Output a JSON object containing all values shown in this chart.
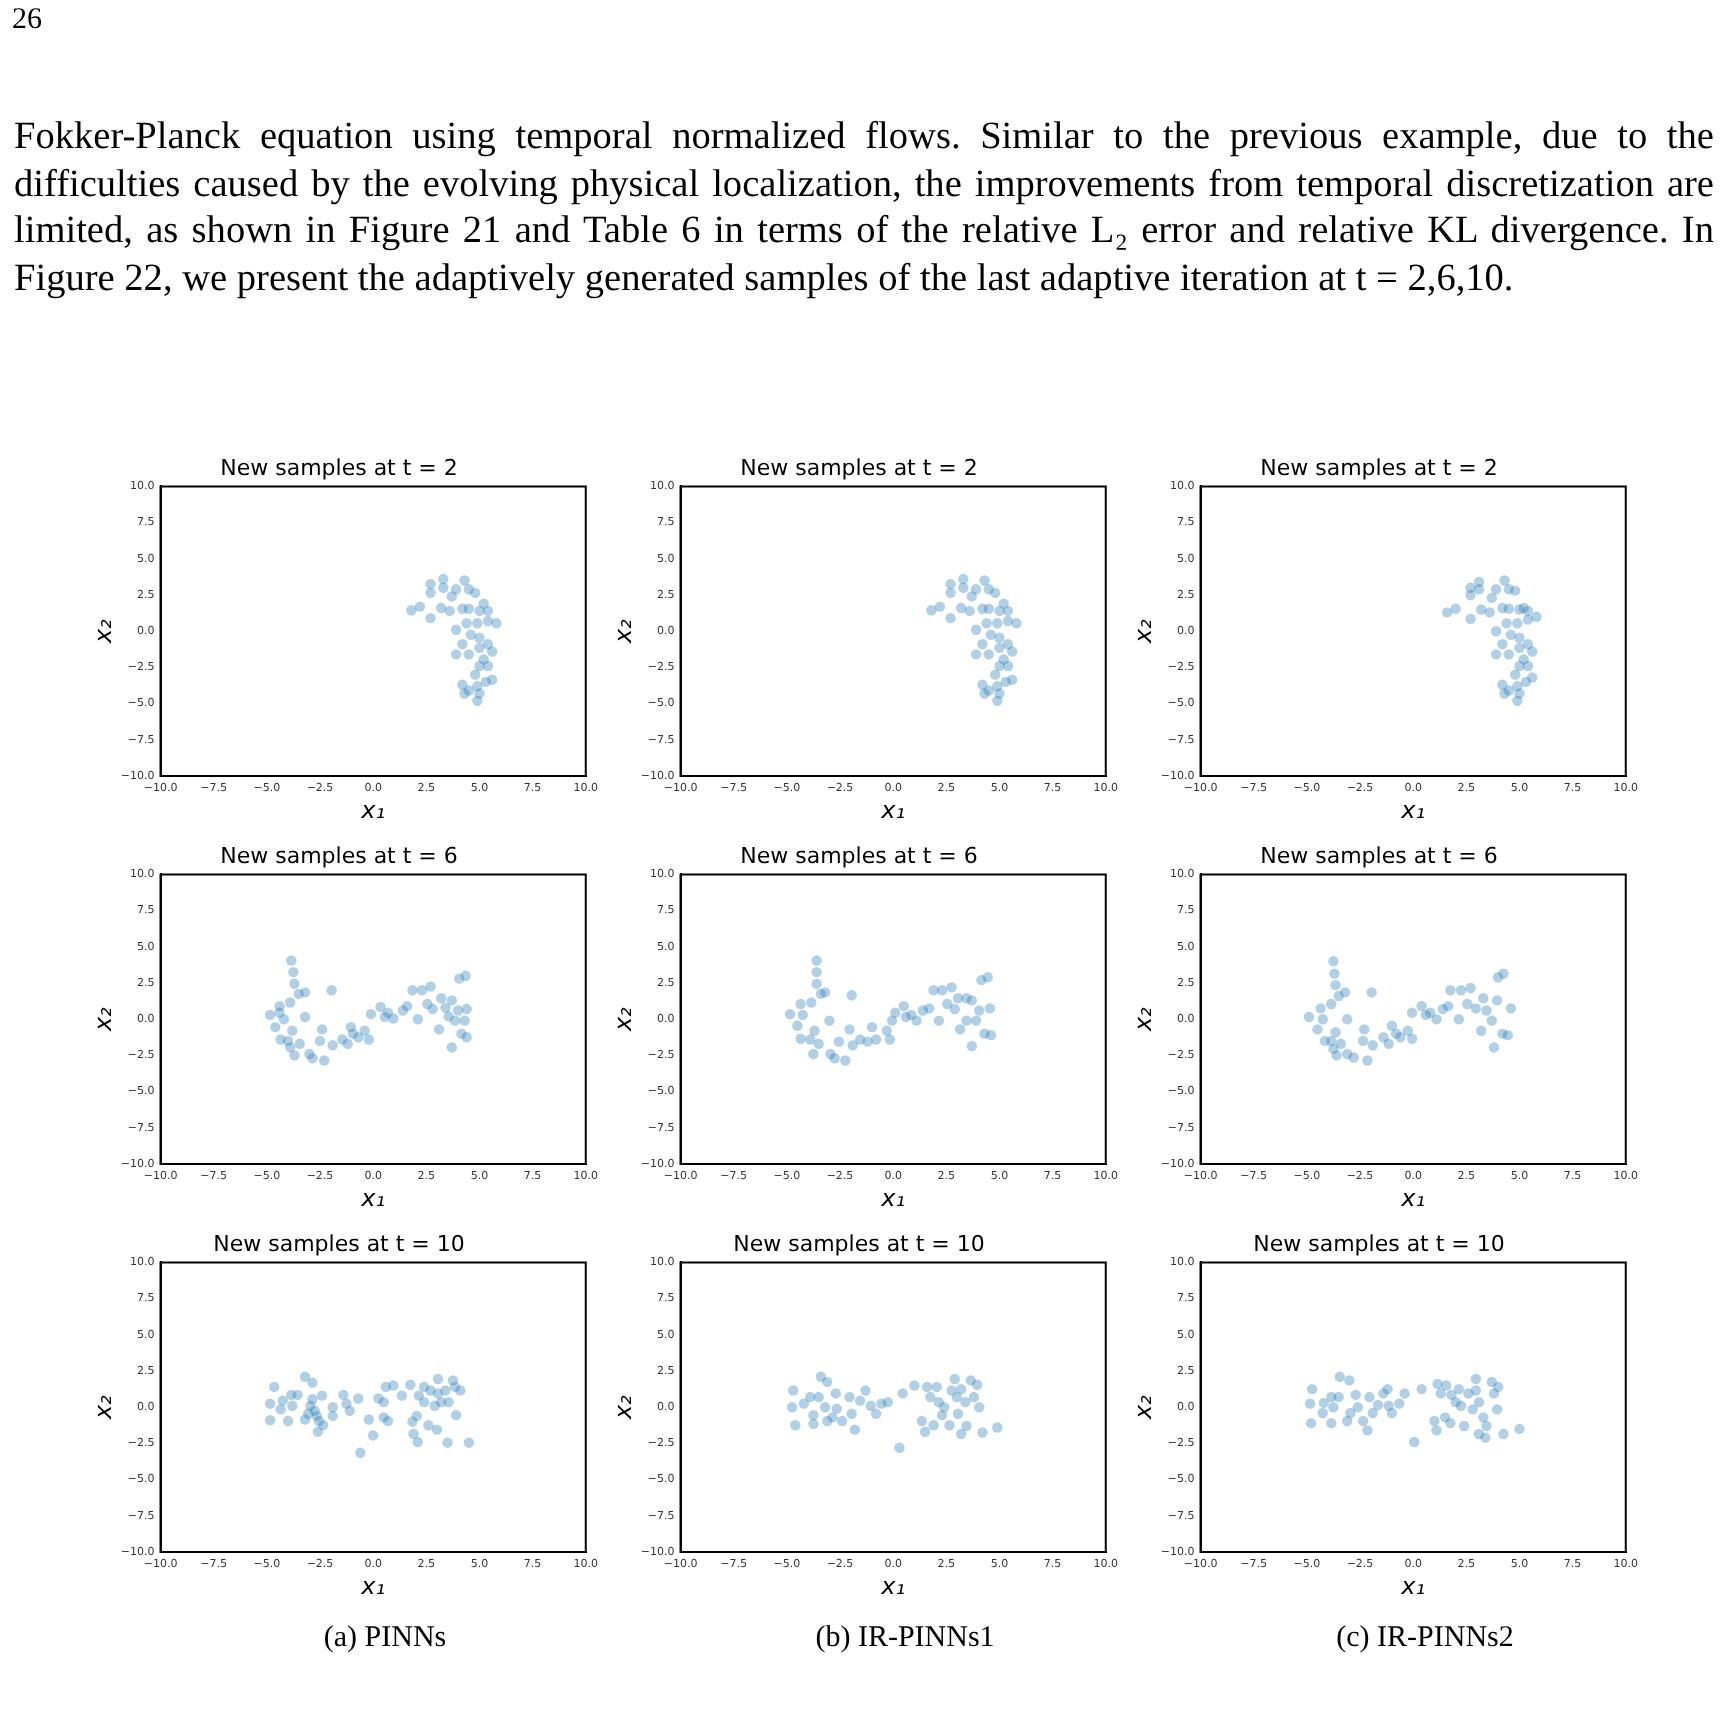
{
  "chart_data": [
    {
      "type": "scatter",
      "title": "New samples at t = 2",
      "xlabel": "x₁",
      "ylabel": "x₂",
      "color": "#1f77b4",
      "marker": "circle",
      "grid": false,
      "legend": false,
      "annotations": [
        "26",
        "Fokker-Planck equation using temporal normalized flows. Similar to the previous example, due to the difficulties caused by the evolving physical localization, the improvements from temporal discretization are limited, as shown in Figure 21 and Table 6 in terms of the relative L₂ error and relative KL divergence. In Figure 22, we present the adaptively generated samples of the last adaptive iteration at t = 2,6,10."
      ],
      "xlim": [
        -10,
        10
      ],
      "ylim": [
        -10,
        10
      ],
      "xticks": [
        {
          "value": -10,
          "label": "−10.0"
        },
        {
          "value": -7.5,
          "label": "−7.5"
        },
        {
          "value": -5,
          "label": "−5.0"
        },
        {
          "value": -2.5,
          "label": "−2.5"
        },
        {
          "value": 0,
          "label": "0.0"
        },
        {
          "value": 2.5,
          "label": "2.5"
        },
        {
          "value": 5,
          "label": "5.0"
        },
        {
          "value": 7.5,
          "label": "7.5"
        },
        {
          "value": 10,
          "label": "10.0"
        }
      ],
      "yticks": [
        {
          "value": -10,
          "label": "−10.0"
        },
        {
          "value": -7.5,
          "label": "−7.5"
        },
        {
          "value": -5,
          "label": "−5.0"
        },
        {
          "value": -2.5,
          "label": "−2.5"
        },
        {
          "value": 0,
          "label": "0.0"
        },
        {
          "value": 2.5,
          "label": "2.5"
        },
        {
          "value": 5,
          "label": "5.0"
        },
        {
          "value": 7.5,
          "label": "7.5"
        },
        {
          "value": 10,
          "label": "10.0"
        }
      ],
      "x": [
        1.8,
        2.2,
        2.7,
        2.7,
        2.7,
        3.3,
        3.3,
        3.2,
        3.6,
        3.7,
        3.9,
        3.9,
        3.9,
        4.3,
        4.5,
        4.8,
        4.2,
        4.5,
        5.0,
        5.2,
        5.4,
        4.4,
        4.9,
        5.4,
        5.8,
        4.6,
        5.0,
        4.2,
        4.5,
        5.0,
        5.4,
        5.6,
        5.2,
        5.0,
        5.4,
        4.8,
        5.3,
        5.6,
        4.2,
        4.5,
        4.9,
        4.3,
        4.9,
        5.0
      ],
      "values": [
        1.45,
        1.7,
        3.25,
        2.65,
        0.9,
        3.6,
        3.0,
        1.6,
        1.4,
        2.4,
        2.9,
        0.1,
        -1.6,
        3.5,
        2.9,
        2.65,
        1.55,
        1.55,
        1.4,
        1.9,
        1.4,
        0.55,
        0.55,
        0.7,
        0.55,
        -0.25,
        -0.45,
        -0.9,
        -1.6,
        -1.15,
        -0.9,
        -1.4,
        -1.95,
        -2.4,
        -2.4,
        -3.0,
        -3.5,
        -3.35,
        -3.7,
        -4.1,
        -3.8,
        -4.3,
        -4.8,
        -4.3
      ]
    },
    {
      "type": "scatter",
      "title": "New samples at t = 2",
      "xlabel": "x₁",
      "ylabel": "x₂",
      "color": "#1f77b4",
      "marker": "circle",
      "grid": false,
      "legend": false,
      "xlim": [
        -10,
        10
      ],
      "ylim": [
        -10,
        10
      ],
      "xticks": [
        {
          "value": -10,
          "label": "−10.0"
        },
        {
          "value": -7.5,
          "label": "−7.5"
        },
        {
          "value": -5,
          "label": "−5.0"
        },
        {
          "value": -2.5,
          "label": "−2.5"
        },
        {
          "value": 0,
          "label": "0.0"
        },
        {
          "value": 2.5,
          "label": "2.5"
        },
        {
          "value": 5,
          "label": "5.0"
        },
        {
          "value": 7.5,
          "label": "7.5"
        },
        {
          "value": 10,
          "label": "10.0"
        }
      ],
      "yticks": [
        {
          "value": -10,
          "label": "−10.0"
        },
        {
          "value": -7.5,
          "label": "−7.5"
        },
        {
          "value": -5,
          "label": "−5.0"
        },
        {
          "value": -2.5,
          "label": "−2.5"
        },
        {
          "value": 0,
          "label": "0.0"
        },
        {
          "value": 2.5,
          "label": "2.5"
        },
        {
          "value": 5,
          "label": "5.0"
        },
        {
          "value": 7.5,
          "label": "7.5"
        },
        {
          "value": 10,
          "label": "10.0"
        }
      ],
      "x": [
        1.8,
        2.2,
        2.7,
        2.7,
        2.7,
        3.3,
        3.3,
        3.2,
        3.6,
        3.7,
        3.9,
        3.9,
        3.9,
        4.3,
        4.5,
        4.8,
        4.2,
        4.5,
        5.0,
        5.2,
        5.4,
        4.4,
        4.9,
        5.4,
        5.8,
        4.6,
        5.0,
        4.2,
        4.5,
        5.0,
        5.4,
        5.6,
        5.2,
        5.0,
        5.4,
        4.8,
        5.3,
        5.6,
        4.2,
        4.5,
        4.9,
        4.3,
        4.9,
        5.0
      ],
      "values": [
        1.45,
        1.7,
        3.25,
        2.65,
        0.9,
        3.6,
        3.0,
        1.6,
        1.4,
        2.4,
        2.9,
        0.1,
        -1.6,
        3.5,
        2.9,
        2.65,
        1.55,
        1.55,
        1.4,
        1.9,
        1.4,
        0.55,
        0.55,
        0.7,
        0.55,
        -0.25,
        -0.45,
        -0.9,
        -1.6,
        -1.15,
        -0.9,
        -1.4,
        -1.95,
        -2.4,
        -2.4,
        -3.0,
        -3.5,
        -3.35,
        -3.7,
        -4.1,
        -3.8,
        -4.3,
        -4.8,
        -4.3
      ]
    },
    {
      "type": "scatter",
      "title": "New samples at t = 2",
      "xlabel": "x₁",
      "ylabel": "x₂",
      "color": "#1f77b4",
      "marker": "circle",
      "grid": false,
      "legend": false,
      "xlim": [
        -10,
        10
      ],
      "ylim": [
        -10,
        10
      ],
      "xticks": [
        {
          "value": -10,
          "label": "−10.0"
        },
        {
          "value": -7.5,
          "label": "−7.5"
        },
        {
          "value": -5,
          "label": "−5.0"
        },
        {
          "value": -2.5,
          "label": "−2.5"
        },
        {
          "value": 0,
          "label": "0.0"
        },
        {
          "value": 2.5,
          "label": "2.5"
        },
        {
          "value": 5,
          "label": "5.0"
        },
        {
          "value": 7.5,
          "label": "7.5"
        },
        {
          "value": 10,
          "label": "10.0"
        }
      ],
      "yticks": [
        {
          "value": -10,
          "label": "−10.0"
        },
        {
          "value": -7.5,
          "label": "−7.5"
        },
        {
          "value": -5,
          "label": "−5.0"
        },
        {
          "value": -2.5,
          "label": "−2.5"
        },
        {
          "value": 0,
          "label": "0.0"
        },
        {
          "value": 2.5,
          "label": "2.5"
        },
        {
          "value": 5,
          "label": "5.0"
        },
        {
          "value": 7.5,
          "label": "7.5"
        },
        {
          "value": 10,
          "label": "10.0"
        }
      ],
      "x": [
        1.6,
        2.0,
        2.7,
        2.7,
        2.7,
        3.1,
        3.1,
        3.2,
        3.6,
        3.7,
        3.9,
        3.9,
        3.9,
        4.3,
        4.5,
        4.8,
        4.2,
        4.5,
        5.0,
        5.2,
        5.4,
        4.4,
        4.9,
        5.4,
        5.8,
        4.6,
        5.0,
        4.2,
        4.5,
        5.0,
        5.4,
        5.6,
        5.2,
        5.0,
        5.4,
        4.8,
        5.3,
        5.6,
        4.2,
        4.5,
        4.9,
        4.3,
        4.9,
        5.0
      ],
      "values": [
        1.3,
        1.55,
        3.0,
        2.5,
        0.85,
        3.4,
        2.9,
        1.5,
        1.3,
        2.3,
        2.9,
        0.0,
        -1.6,
        3.5,
        2.9,
        2.8,
        1.6,
        1.55,
        1.5,
        1.6,
        1.4,
        0.55,
        0.55,
        0.8,
        1.0,
        -0.25,
        -0.45,
        -0.9,
        -1.6,
        -1.15,
        -0.9,
        -1.4,
        -1.95,
        -2.4,
        -2.4,
        -3.0,
        -3.5,
        -3.2,
        -3.7,
        -4.1,
        -3.8,
        -4.3,
        -4.8,
        -4.3
      ]
    },
    {
      "type": "scatter",
      "title": "New samples at t = 6",
      "xlabel": "x₁",
      "ylabel": "x₂",
      "color": "#1f77b4",
      "marker": "circle",
      "grid": false,
      "legend": false,
      "xlim": [
        -10,
        10
      ],
      "ylim": [
        -10,
        10
      ],
      "xticks": [
        {
          "value": -10,
          "label": "−10.0"
        },
        {
          "value": -7.5,
          "label": "−7.5"
        },
        {
          "value": -5,
          "label": "−5.0"
        },
        {
          "value": -2.5,
          "label": "−2.5"
        },
        {
          "value": 0,
          "label": "0.0"
        },
        {
          "value": 2.5,
          "label": "2.5"
        },
        {
          "value": 5,
          "label": "5.0"
        },
        {
          "value": 7.5,
          "label": "7.5"
        },
        {
          "value": 10,
          "label": "10.0"
        }
      ],
      "yticks": [
        {
          "value": -10,
          "label": "−10.0"
        },
        {
          "value": -7.5,
          "label": "−7.5"
        },
        {
          "value": -5,
          "label": "−5.0"
        },
        {
          "value": -2.5,
          "label": "−2.5"
        },
        {
          "value": 0,
          "label": "0.0"
        },
        {
          "value": 2.5,
          "label": "2.5"
        },
        {
          "value": 5,
          "label": "5.0"
        },
        {
          "value": 7.5,
          "label": "7.5"
        },
        {
          "value": 10,
          "label": "10.0"
        }
      ],
      "x": [
        -4.85,
        -4.6,
        -4.4,
        -4.4,
        -4.2,
        -4.35,
        -4.0,
        -3.85,
        -3.75,
        -3.7,
        -3.5,
        -3.9,
        -3.8,
        -3.9,
        -3.7,
        -3.45,
        -3.2,
        -3.2,
        -3.0,
        -2.85,
        -2.5,
        -2.3,
        -2.4,
        -1.95,
        -1.9,
        -1.45,
        -1.2,
        -1.05,
        -0.95,
        -0.7,
        -0.4,
        -0.2,
        -0.1,
        0.35,
        0.55,
        0.7,
        0.95,
        1.4,
        1.6,
        1.85,
        2.1,
        2.3,
        2.55,
        2.7,
        2.8,
        3.2,
        3.1,
        3.4,
        3.55,
        3.7,
        3.7,
        3.85,
        4.0,
        4.05,
        4.35,
        4.15,
        4.4,
        4.4,
        4.3
      ],
      "values": [
        0.3,
        -0.55,
        0.9,
        0.45,
        0,
        -1.4,
        -1.5,
        4.05,
        3.25,
        2.45,
        1.75,
        1.15,
        -0.8,
        -1.95,
        -2.5,
        -1.7,
        1.85,
        0.15,
        -2.4,
        -2.7,
        -1.5,
        -2.85,
        -0.7,
        2.0,
        -1.8,
        -1.4,
        -1.7,
        -0.55,
        -1.0,
        -1.25,
        -0.8,
        -1.4,
        0.35,
        0.85,
        0.15,
        0.45,
        0.05,
        0.6,
        0.9,
        2.0,
        0,
        2.0,
        1.05,
        2.25,
        0.7,
        1.45,
        -0.7,
        0.8,
        0.2,
        1.3,
        -1.95,
        -0.1,
        0.6,
        2.8,
        3.0,
        -1.0,
        -1.25,
        0.7,
        -0.1
      ]
    },
    {
      "type": "scatter",
      "title": "New samples at t = 6",
      "xlabel": "x₁",
      "ylabel": "x₂",
      "color": "#1f77b4",
      "marker": "circle",
      "grid": false,
      "legend": false,
      "xlim": [
        -10,
        10
      ],
      "ylim": [
        -10,
        10
      ],
      "xticks": [
        {
          "value": -10,
          "label": "−10.0"
        },
        {
          "value": -7.5,
          "label": "−7.5"
        },
        {
          "value": -5,
          "label": "−5.0"
        },
        {
          "value": -2.5,
          "label": "−2.5"
        },
        {
          "value": 0,
          "label": "0.0"
        },
        {
          "value": 2.5,
          "label": "2.5"
        },
        {
          "value": 5,
          "label": "5.0"
        },
        {
          "value": 7.5,
          "label": "7.5"
        },
        {
          "value": 10,
          "label": "10.0"
        }
      ],
      "yticks": [
        {
          "value": -10,
          "label": "−10.0"
        },
        {
          "value": -7.5,
          "label": "−7.5"
        },
        {
          "value": -5,
          "label": "−5.0"
        },
        {
          "value": -2.5,
          "label": "−2.5"
        },
        {
          "value": 0,
          "label": "0.0"
        },
        {
          "value": 2.5,
          "label": "2.5"
        },
        {
          "value": 5,
          "label": "5.0"
        },
        {
          "value": 7.5,
          "label": "7.5"
        },
        {
          "value": 10,
          "label": "10.0"
        }
      ],
      "x": [
        -4.85,
        -4.5,
        -4.35,
        -4.25,
        -4.35,
        -3.9,
        -3.6,
        -3.6,
        -3.6,
        -3.4,
        -3.85,
        -3.7,
        -3.75,
        -3.5,
        -3.2,
        -3.0,
        -2.95,
        -2.75,
        -2.55,
        -2.25,
        -2.05,
        -1.95,
        -1.9,
        -1.55,
        -1.2,
        -0.99,
        -0.8,
        -0.3,
        -0.15,
        -0.05,
        0.1,
        0.5,
        0.6,
        0.85,
        1.1,
        1.4,
        1.7,
        1.9,
        2.15,
        2.3,
        2.55,
        2.75,
        2.9,
        3.05,
        3.15,
        3.45,
        3.45,
        3.7,
        3.7,
        3.9,
        4.05,
        4.15,
        4.45,
        4.3,
        4.6,
        4.55
      ],
      "values": [
        0.35,
        -0.45,
        1.05,
        0.3,
        -1.35,
        -1.4,
        4.05,
        3.25,
        2.45,
        1.75,
        1.15,
        -0.8,
        -2.4,
        -1.7,
        1.85,
        -0.1,
        -2.4,
        -2.7,
        -1.55,
        -2.85,
        -0.7,
        1.65,
        -1.8,
        -1.4,
        -1.55,
        -0.55,
        -1.4,
        -0.8,
        -1.4,
        -0.1,
        0.45,
        0.9,
        0.15,
        0.3,
        -0.1,
        0.6,
        0.75,
        2.0,
        -0.1,
        2.0,
        1.05,
        2.2,
        0.7,
        1.45,
        -0.7,
        1.45,
        -0.1,
        1.3,
        -1.85,
        -0.1,
        0.6,
        2.7,
        2.9,
        -1.0,
        -1.1,
        0.75
      ]
    },
    {
      "type": "scatter",
      "title": "New samples at t = 6",
      "xlabel": "x₁",
      "ylabel": "x₂",
      "color": "#1f77b4",
      "marker": "circle",
      "grid": false,
      "legend": false,
      "xlim": [
        -10,
        10
      ],
      "ylim": [
        -10,
        10
      ],
      "xticks": [
        {
          "value": -10,
          "label": "−10.0"
        },
        {
          "value": -7.5,
          "label": "−7.5"
        },
        {
          "value": -5,
          "label": "−5.0"
        },
        {
          "value": -2.5,
          "label": "−2.5"
        },
        {
          "value": 0,
          "label": "0.0"
        },
        {
          "value": 2.5,
          "label": "2.5"
        },
        {
          "value": 5,
          "label": "5.0"
        },
        {
          "value": 7.5,
          "label": "7.5"
        },
        {
          "value": 10,
          "label": "10.0"
        }
      ],
      "yticks": [
        {
          "value": -10,
          "label": "−10.0"
        },
        {
          "value": -7.5,
          "label": "−7.5"
        },
        {
          "value": -5,
          "label": "−5.0"
        },
        {
          "value": -2.5,
          "label": "−2.5"
        },
        {
          "value": 0,
          "label": "0.0"
        },
        {
          "value": 2.5,
          "label": "2.5"
        },
        {
          "value": 5,
          "label": "5.0"
        },
        {
          "value": 7.5,
          "label": "7.5"
        },
        {
          "value": 10,
          "label": "10.0"
        }
      ],
      "x": [
        -4.9,
        -4.5,
        -4.35,
        -4.25,
        -4.15,
        -3.85,
        -3.75,
        -3.7,
        -3.65,
        -3.5,
        -3.85,
        -3.65,
        -3.75,
        -3.6,
        -3.4,
        -3.2,
        -3.1,
        -3.1,
        -2.8,
        -2.35,
        -2.15,
        -2.3,
        -1.95,
        -1.9,
        -1.4,
        -1.15,
        -1.0,
        -0.8,
        -0.6,
        -0.25,
        -0.05,
        -0.05,
        0.4,
        0.6,
        0.8,
        1.1,
        1.4,
        1.65,
        1.75,
        2.15,
        2.25,
        2.55,
        2.7,
        2.95,
        3.3,
        3.2,
        3.45,
        3.7,
        3.8,
        3.95,
        4.0,
        4.25,
        4.2,
        4.45,
        4.6
      ],
      "values": [
        0.15,
        -0.7,
        0.75,
        0,
        -1.5,
        -1.5,
        4.0,
        3.15,
        2.35,
        1.6,
        1.05,
        -0.9,
        -2.05,
        -2.5,
        -1.7,
        1.85,
        0,
        -2.4,
        -2.65,
        -1.5,
        -2.85,
        -0.7,
        1.85,
        -1.8,
        -1.25,
        -1.7,
        -0.45,
        -1.0,
        -1.25,
        -0.8,
        -1.35,
        0.45,
        0.9,
        0.3,
        0.45,
        0,
        0.7,
        0.9,
        2.0,
        0,
        2.0,
        1.05,
        2.15,
        0.75,
        1.45,
        -0.8,
        0.6,
        -0.1,
        -1.95,
        1.3,
        2.9,
        3.15,
        -1.0,
        -1.1,
        0.75
      ]
    },
    {
      "type": "scatter",
      "title": "New samples at t = 10",
      "xlabel": "x₁",
      "ylabel": "x₂",
      "color": "#1f77b4",
      "marker": "circle",
      "grid": false,
      "legend": false,
      "annotations": [
        "(a) PINNs"
      ],
      "xlim": [
        -10,
        10
      ],
      "ylim": [
        -10,
        10
      ],
      "xticks": [
        {
          "value": -10,
          "label": "−10.0"
        },
        {
          "value": -7.5,
          "label": "−7.5"
        },
        {
          "value": -5,
          "label": "−5.0"
        },
        {
          "value": -2.5,
          "label": "−2.5"
        },
        {
          "value": 0,
          "label": "0.0"
        },
        {
          "value": 2.5,
          "label": "2.5"
        },
        {
          "value": 5,
          "label": "5.0"
        },
        {
          "value": 7.5,
          "label": "7.5"
        },
        {
          "value": 10,
          "label": "10.0"
        }
      ],
      "yticks": [
        {
          "value": -10,
          "label": "−10.0"
        },
        {
          "value": -7.5,
          "label": "−7.5"
        },
        {
          "value": -5,
          "label": "−5.0"
        },
        {
          "value": -2.5,
          "label": "−2.5"
        },
        {
          "value": 0,
          "label": "0.0"
        },
        {
          "value": 2.5,
          "label": "2.5"
        },
        {
          "value": 5,
          "label": "5.0"
        },
        {
          "value": 7.5,
          "label": "7.5"
        },
        {
          "value": 10,
          "label": "10.0"
        }
      ],
      "x": [
        -4.85,
        -4.85,
        -4.65,
        -4.25,
        -4.35,
        -4.0,
        -3.85,
        -3.8,
        -3.55,
        -3.2,
        -3.2,
        -3.05,
        -2.95,
        -2.85,
        -2.85,
        -2.75,
        -2.65,
        -2.55,
        -2.4,
        -2.35,
        -2.6,
        -1.9,
        -1.9,
        -1.4,
        -1.25,
        -1.1,
        -0.7,
        -0.6,
        0,
        -0.2,
        0.25,
        0.5,
        0.5,
        0.7,
        0.6,
        0.95,
        1.35,
        1.75,
        1.85,
        1.9,
        2.1,
        2.05,
        2.15,
        2.4,
        2.4,
        2.6,
        2.7,
        2.9,
        3.0,
        3.05,
        3.05,
        3.2,
        3.4,
        3.55,
        3.5,
        3.75,
        3.85,
        3.9,
        4.1,
        4.5
      ],
      "values": [
        0.25,
        -0.9,
        1.4,
        0.45,
        -0.15,
        -0.95,
        0.85,
        0.1,
        0.85,
        2.1,
        -0.85,
        -0.45,
        0.1,
        1.7,
        0.55,
        -0.25,
        -0.6,
        -0.95,
        0.8,
        -1.25,
        -1.7,
        0,
        -0.6,
        0.85,
        0.25,
        -0.25,
        0.6,
        -3.15,
        -1.95,
        -0.85,
        0.6,
        0.35,
        -0.7,
        -0.95,
        1.4,
        1.5,
        0.8,
        1.55,
        -1.0,
        -1.85,
        -2.4,
        -0.6,
        0.8,
        1.4,
        0.35,
        -1.25,
        1.15,
        0.1,
        -1.55,
        1.95,
        0.95,
        0.35,
        1.15,
        0.35,
        -2.45,
        1.85,
        1.4,
        -0.55,
        1.15,
        -2.45
      ]
    },
    {
      "type": "scatter",
      "title": "New samples at t = 10",
      "xlabel": "x₁",
      "ylabel": "x₂",
      "color": "#1f77b4",
      "marker": "circle",
      "grid": false,
      "legend": false,
      "annotations": [
        "(b) IR-PINNs1"
      ],
      "xlim": [
        -10,
        10
      ],
      "ylim": [
        -10,
        10
      ],
      "xticks": [
        {
          "value": -10,
          "label": "−10.0"
        },
        {
          "value": -7.5,
          "label": "−7.5"
        },
        {
          "value": -5,
          "label": "−5.0"
        },
        {
          "value": -2.5,
          "label": "−2.5"
        },
        {
          "value": 0,
          "label": "0.0"
        },
        {
          "value": 2.5,
          "label": "2.5"
        },
        {
          "value": 5,
          "label": "5.0"
        },
        {
          "value": 7.5,
          "label": "7.5"
        },
        {
          "value": 10,
          "label": "10.0"
        }
      ],
      "yticks": [
        {
          "value": -10,
          "label": "−10.0"
        },
        {
          "value": -7.5,
          "label": "−7.5"
        },
        {
          "value": -5,
          "label": "−5.0"
        },
        {
          "value": -2.5,
          "label": "−2.5"
        },
        {
          "value": 0,
          "label": "0.0"
        },
        {
          "value": 2.5,
          "label": "2.5"
        },
        {
          "value": 5,
          "label": "5.0"
        },
        {
          "value": 7.5,
          "label": "7.5"
        },
        {
          "value": 10,
          "label": "10.0"
        }
      ],
      "x": [
        -4.7,
        -4.75,
        -4.6,
        -4.2,
        -3.9,
        -3.75,
        -3.75,
        -3.5,
        -3.4,
        -3.1,
        -3.2,
        -3.1,
        -2.85,
        -2.7,
        -2.65,
        -2.4,
        -2.05,
        -1.95,
        -1.8,
        -1.55,
        -1.3,
        -1.05,
        -0.8,
        -0.55,
        -0.25,
        0.45,
        0.3,
        1.0,
        1.35,
        1.5,
        1.6,
        1.75,
        1.9,
        2.05,
        2.15,
        2.3,
        2.4,
        2.65,
        2.75,
        2.9,
        3.0,
        3.05,
        3.2,
        3.2,
        3.4,
        3.45,
        3.65,
        3.8,
        3.95,
        4.05,
        4.2,
        4.9
      ],
      "values": [
        1.15,
        0,
        -1.25,
        0.25,
        0.7,
        -0.55,
        -1.15,
        0.7,
        2.1,
        1.75,
        0,
        -0.95,
        -0.7,
        0.95,
        -0.1,
        -0.95,
        0.7,
        -0.45,
        -1.55,
        0.45,
        1.15,
        0.1,
        -0.45,
        0.25,
        0.35,
        0.95,
        -2.8,
        1.5,
        -0.95,
        -1.7,
        1.4,
        0.7,
        -1.25,
        1.4,
        0.35,
        -0.55,
        0,
        -1.25,
        1.15,
        1.95,
        0.7,
        -0.45,
        1.25,
        -1.85,
        0.35,
        -1.3,
        1.85,
        0.7,
        1.55,
        0,
        -1.75,
        -1.4
      ]
    },
    {
      "type": "scatter",
      "title": "New samples at t = 10",
      "xlabel": "x₁",
      "ylabel": "x₂",
      "color": "#1f77b4",
      "marker": "circle",
      "grid": false,
      "legend": false,
      "annotations": [
        "(c) IR-PINNs2"
      ],
      "xlim": [
        -10,
        10
      ],
      "ylim": [
        -10,
        10
      ],
      "xticks": [
        {
          "value": -10,
          "label": "−10.0"
        },
        {
          "value": -7.5,
          "label": "−7.5"
        },
        {
          "value": -5,
          "label": "−5.0"
        },
        {
          "value": -2.5,
          "label": "−2.5"
        },
        {
          "value": 0,
          "label": "0.0"
        },
        {
          "value": 2.5,
          "label": "2.5"
        },
        {
          "value": 5,
          "label": "5.0"
        },
        {
          "value": 7.5,
          "label": "7.5"
        },
        {
          "value": 10,
          "label": "10.0"
        }
      ],
      "yticks": [
        {
          "value": -10,
          "label": "−10.0"
        },
        {
          "value": -7.5,
          "label": "−7.5"
        },
        {
          "value": -5,
          "label": "−5.0"
        },
        {
          "value": -2.5,
          "label": "−2.5"
        },
        {
          "value": 0,
          "label": "0.0"
        },
        {
          "value": 2.5,
          "label": "2.5"
        },
        {
          "value": 5,
          "label": "5.0"
        },
        {
          "value": 7.5,
          "label": "7.5"
        },
        {
          "value": 10,
          "label": "10.0"
        }
      ],
      "x": [
        -4.75,
        -4.85,
        -4.8,
        -4.25,
        -4.2,
        -3.85,
        -3.85,
        -3.75,
        -3.5,
        -3.45,
        -3.0,
        -3.1,
        -2.95,
        -2.7,
        -2.6,
        -2.35,
        -2.15,
        -2.05,
        -1.9,
        -1.65,
        -1.4,
        -1.2,
        -1.15,
        -1.0,
        -0.65,
        -0.4,
        0.05,
        0.4,
        1.0,
        1.1,
        1.15,
        1.3,
        1.5,
        1.55,
        1.75,
        1.8,
        2.0,
        2.15,
        2.25,
        2.4,
        2.6,
        2.8,
        2.95,
        2.95,
        3.1,
        3.1,
        3.3,
        3.4,
        3.45,
        3.7,
        3.8,
        3.95,
        4.0,
        4.25,
        5.0
      ],
      "values": [
        1.25,
        0.25,
        -1.1,
        -0.4,
        0.3,
        0.7,
        -1.1,
        0,
        0.7,
        2.1,
        1.85,
        -0.95,
        -0.4,
        0.85,
        0,
        -0.95,
        -1.6,
        0.7,
        -0.4,
        0.15,
        0.95,
        1.25,
        0.1,
        -0.4,
        0.25,
        0.95,
        -2.4,
        1.25,
        -0.95,
        -1.6,
        1.6,
        0.95,
        -0.7,
        1.5,
        -1.1,
        0.85,
        0.35,
        1.25,
        0.1,
        -1.3,
        0.95,
        -0.15,
        1.95,
        1.15,
        0.35,
        -1.85,
        -0.7,
        -2.1,
        -1.3,
        1.75,
        0.95,
        -0.15,
        1.4,
        -1.85,
        -1.5
      ]
    }
  ]
}
